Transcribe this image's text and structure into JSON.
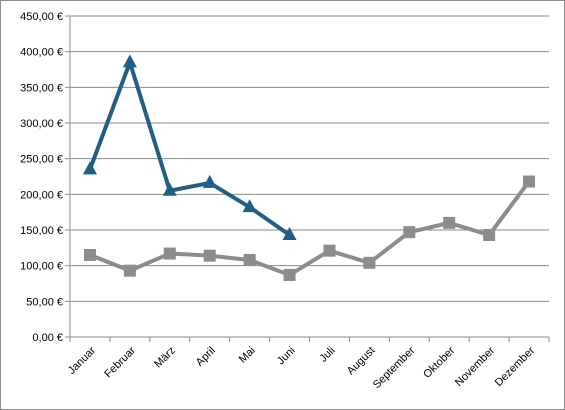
{
  "chart_data": {
    "type": "line",
    "title": "",
    "xlabel": "",
    "ylabel": "",
    "ylim": [
      0,
      450
    ],
    "y_ticks": [
      0,
      50,
      100,
      150,
      200,
      250,
      300,
      350,
      400,
      450
    ],
    "y_tick_labels": [
      "0,00 €",
      "50,00 €",
      "100,00 €",
      "150,00 €",
      "200,00 €",
      "250,00 €",
      "300,00 €",
      "350,00 €",
      "400,00 €",
      "450,00 €"
    ],
    "categories": [
      "Januar",
      "Februar",
      "März",
      "April",
      "Mai",
      "Juni",
      "Juli",
      "August",
      "September",
      "Oktober",
      "November",
      "Dezember"
    ],
    "grid": "horizontal",
    "legend": "none",
    "series": [
      {
        "color": "#1f5f86",
        "marker": "triangle",
        "values": [
          235,
          385,
          205,
          216,
          182,
          143,
          null,
          null,
          null,
          null,
          null,
          null
        ]
      },
      {
        "color": "#8c8c8c",
        "marker": "square",
        "values": [
          115,
          93,
          117,
          114,
          108,
          87,
          121,
          104,
          147,
          160,
          143,
          218
        ]
      }
    ]
  }
}
